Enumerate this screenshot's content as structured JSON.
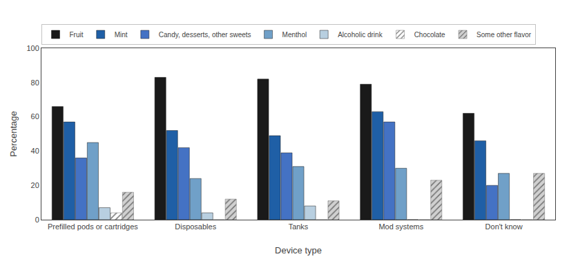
{
  "chart_data": {
    "type": "bar",
    "xlabel": "Device type",
    "ylabel": "Percentage",
    "categories": [
      "Prefilled pods or cartridges",
      "Disposables",
      "Tanks",
      "Mod systems",
      "Don't know"
    ],
    "series": [
      {
        "name": "Fruit",
        "color": "#1a1a1a",
        "values": [
          66,
          83,
          82,
          79,
          62
        ]
      },
      {
        "name": "Mint",
        "color": "#1f5fa6",
        "values": [
          57,
          52,
          49,
          63,
          46
        ]
      },
      {
        "name": "Candy, desserts, other sweets",
        "color": "#4472c4",
        "values": [
          36,
          42,
          39,
          57,
          20
        ]
      },
      {
        "name": "Menthol",
        "color": "#70a0c8",
        "values": [
          45,
          24,
          31,
          30,
          27
        ]
      },
      {
        "name": "Alcoholic drink",
        "color": "#b8cfe0",
        "values": [
          7,
          4,
          8,
          0,
          0
        ]
      },
      {
        "name": "Chocolate",
        "color": "#ffffff",
        "marker": "hatch",
        "values": [
          4,
          0,
          0,
          0,
          0
        ]
      },
      {
        "name": "Some other flavor",
        "color": "#d0d0d0",
        "marker": "hatch",
        "values": [
          16,
          12,
          11,
          23,
          27
        ]
      }
    ],
    "ylim": [
      0,
      100
    ],
    "yticks": [
      0,
      20,
      40,
      60,
      80,
      100
    ],
    "grid": false,
    "legend": "upper left"
  }
}
